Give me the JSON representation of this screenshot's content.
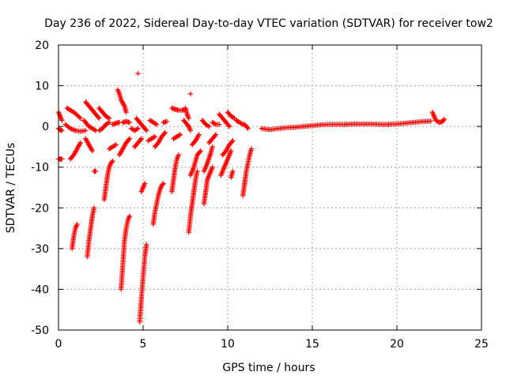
{
  "chart_data": {
    "type": "scatter",
    "title": "Day 236 of 2022, Sidereal Day-to-day VTEC variation (SDTVAR) for receiver tow2",
    "xlabel": "GPS time / hours",
    "ylabel": "SDTVAR / TECUs",
    "xlim": [
      0,
      25
    ],
    "ylim": [
      -50,
      20
    ],
    "xticks": [
      0,
      5,
      10,
      15,
      20,
      25
    ],
    "yticks": [
      -50,
      -40,
      -30,
      -20,
      -10,
      0,
      10,
      20
    ],
    "grid": true,
    "marker": "plus",
    "color": "#ff0000",
    "series": [
      {
        "name": "tracks",
        "segments": [
          [
            [
              0.0,
              3.5
            ],
            [
              0.1,
              2.5
            ],
            [
              0.2,
              1.5
            ]
          ],
          [
            [
              0.0,
              -0.5
            ],
            [
              0.1,
              -0.8
            ],
            [
              0.2,
              -1.0
            ]
          ],
          [
            [
              0.0,
              -8.0
            ],
            [
              0.1,
              -8.0
            ],
            [
              0.2,
              -8.0
            ]
          ],
          [
            [
              0.4,
              0.5
            ],
            [
              0.7,
              -0.5
            ],
            [
              1.0,
              -1.0
            ],
            [
              1.3,
              -1.2
            ],
            [
              1.6,
              -1.0
            ]
          ],
          [
            [
              0.5,
              4.5
            ],
            [
              0.7,
              4.0
            ],
            [
              0.9,
              3.5
            ],
            [
              1.1,
              2.8
            ],
            [
              1.3,
              2.0
            ]
          ],
          [
            [
              0.7,
              -8.0
            ],
            [
              0.9,
              -7.0
            ],
            [
              1.1,
              -5.5
            ],
            [
              1.3,
              -4.0
            ]
          ],
          [
            [
              0.8,
              -30.0
            ],
            [
              0.9,
              -27.0
            ],
            [
              1.0,
              -25.0
            ],
            [
              1.1,
              -24.0
            ]
          ],
          [
            [
              1.5,
              1.5
            ],
            [
              1.6,
              1.0
            ],
            [
              1.8,
              0.0
            ],
            [
              2.0,
              -0.5
            ],
            [
              2.2,
              -1.0
            ]
          ],
          [
            [
              1.6,
              -3.0
            ],
            [
              1.8,
              -4.5
            ],
            [
              2.0,
              -6.0
            ]
          ],
          [
            [
              1.6,
              6.0
            ],
            [
              1.8,
              5.0
            ],
            [
              2.0,
              4.0
            ],
            [
              2.2,
              3.0
            ],
            [
              2.4,
              2.0
            ]
          ],
          [
            [
              1.7,
              -32.0
            ],
            [
              1.8,
              -28.0
            ],
            [
              1.9,
              -25.0
            ],
            [
              2.0,
              -22.0
            ],
            [
              2.1,
              -20.0
            ]
          ],
          [
            [
              2.1,
              -11.0
            ],
            [
              2.2,
              -11.0
            ]
          ],
          [
            [
              2.4,
              -1.0
            ],
            [
              2.6,
              -0.5
            ],
            [
              2.8,
              0.5
            ],
            [
              3.0,
              1.0
            ]
          ],
          [
            [
              2.4,
              4.5
            ],
            [
              2.6,
              3.5
            ],
            [
              2.8,
              2.5
            ],
            [
              3.0,
              2.0
            ]
          ],
          [
            [
              2.7,
              -18.0
            ],
            [
              2.8,
              -15.0
            ],
            [
              2.9,
              -12.0
            ],
            [
              3.0,
              -10.0
            ],
            [
              3.1,
              -9.0
            ],
            [
              3.2,
              -8.5
            ]
          ],
          [
            [
              3.0,
              -5.5
            ],
            [
              3.2,
              -5.0
            ],
            [
              3.4,
              -4.5
            ]
          ],
          [
            [
              3.2,
              0.5
            ],
            [
              3.4,
              0.8
            ],
            [
              3.6,
              1.0
            ]
          ],
          [
            [
              3.5,
              9.0
            ],
            [
              3.6,
              8.0
            ],
            [
              3.7,
              6.5
            ],
            [
              3.9,
              5.0
            ],
            [
              4.0,
              3.5
            ]
          ],
          [
            [
              3.7,
              -40.0
            ],
            [
              3.8,
              -34.0
            ],
            [
              3.9,
              -28.0
            ],
            [
              4.0,
              -25.0
            ],
            [
              4.1,
              -23.0
            ],
            [
              4.2,
              -22.0
            ]
          ],
          [
            [
              3.6,
              -7.0
            ],
            [
              3.8,
              -5.5
            ],
            [
              4.0,
              -4.0
            ],
            [
              4.2,
              -3.0
            ]
          ],
          [
            [
              3.8,
              1.0
            ],
            [
              4.0,
              1.2
            ],
            [
              4.2,
              1.0
            ]
          ],
          [
            [
              4.3,
              -0.5
            ],
            [
              4.5,
              -1.0
            ],
            [
              4.7,
              -0.5
            ]
          ],
          [
            [
              4.5,
              -5.0
            ],
            [
              4.7,
              -4.0
            ],
            [
              4.9,
              -3.0
            ]
          ],
          [
            [
              4.6,
              2.0
            ],
            [
              4.8,
              1.0
            ],
            [
              5.0,
              0.0
            ],
            [
              5.2,
              -1.0
            ]
          ],
          [
            [
              4.7,
              13.0
            ]
          ],
          [
            [
              4.8,
              -48.0
            ],
            [
              4.9,
              -42.0
            ],
            [
              5.0,
              -37.0
            ],
            [
              5.1,
              -32.0
            ],
            [
              5.2,
              -29.0
            ]
          ],
          [
            [
              4.9,
              -16.0
            ],
            [
              5.0,
              -15.0
            ],
            [
              5.1,
              -14.0
            ]
          ],
          [
            [
              5.3,
              -3.5
            ],
            [
              5.5,
              -3.0
            ],
            [
              5.7,
              -2.5
            ]
          ],
          [
            [
              5.4,
              1.5
            ],
            [
              5.6,
              1.0
            ],
            [
              5.8,
              0.5
            ]
          ],
          [
            [
              5.6,
              -24.0
            ],
            [
              5.7,
              -21.0
            ],
            [
              5.8,
              -19.0
            ],
            [
              5.9,
              -17.0
            ],
            [
              6.0,
              -15.5
            ],
            [
              6.1,
              -14.5
            ],
            [
              6.2,
              -14.0
            ]
          ],
          [
            [
              5.7,
              -5.0
            ],
            [
              5.9,
              -4.0
            ],
            [
              6.1,
              -2.5
            ],
            [
              6.3,
              -1.5
            ]
          ],
          [
            [
              6.2,
              1.0
            ],
            [
              6.4,
              1.2
            ]
          ],
          [
            [
              6.7,
              -16.0
            ],
            [
              6.8,
              -13.0
            ],
            [
              6.9,
              -10.0
            ],
            [
              7.0,
              -8.0
            ],
            [
              7.1,
              -7.0
            ]
          ],
          [
            [
              6.7,
              4.5
            ],
            [
              6.9,
              4.2
            ],
            [
              7.1,
              4.0
            ],
            [
              7.3,
              4.0
            ],
            [
              7.5,
              4.2
            ]
          ],
          [
            [
              6.8,
              -3.0
            ],
            [
              7.0,
              -2.5
            ],
            [
              7.2,
              -2.0
            ]
          ],
          [
            [
              7.4,
              1.5
            ],
            [
              7.6,
              0.5
            ],
            [
              7.7,
              0.0
            ],
            [
              7.8,
              -1.0
            ]
          ],
          [
            [
              7.5,
              4.5
            ],
            [
              7.6,
              3.0
            ],
            [
              7.7,
              2.0
            ]
          ],
          [
            [
              7.8,
              8.0
            ]
          ],
          [
            [
              7.7,
              -26.0
            ],
            [
              7.8,
              -22.0
            ],
            [
              7.9,
              -19.0
            ],
            [
              8.0,
              -16.0
            ],
            [
              8.1,
              -13.0
            ],
            [
              8.2,
              -11.0
            ]
          ],
          [
            [
              7.8,
              -12.0
            ],
            [
              8.0,
              -10.0
            ],
            [
              8.2,
              -7.0
            ],
            [
              8.4,
              -6.0
            ]
          ],
          [
            [
              7.9,
              -4.5
            ],
            [
              8.1,
              -3.5
            ],
            [
              8.3,
              -2.0
            ]
          ],
          [
            [
              8.5,
              1.5
            ],
            [
              8.7,
              0.5
            ],
            [
              8.9,
              0.0
            ]
          ],
          [
            [
              8.6,
              -19.0
            ],
            [
              8.7,
              -16.0
            ],
            [
              8.8,
              -13.0
            ],
            [
              9.0,
              -11.0
            ],
            [
              9.1,
              -10.0
            ]
          ],
          [
            [
              8.6,
              -11.0
            ],
            [
              8.8,
              -9.0
            ],
            [
              9.0,
              -6.5
            ],
            [
              9.1,
              -5.0
            ]
          ],
          [
            [
              8.9,
              -4.0
            ],
            [
              9.1,
              -3.0
            ],
            [
              9.3,
              -2.0
            ]
          ],
          [
            [
              9.1,
              1.0
            ],
            [
              9.3,
              0.5
            ],
            [
              9.5,
              0.5
            ]
          ],
          [
            [
              9.5,
              3.0
            ],
            [
              9.7,
              2.0
            ],
            [
              9.9,
              1.0
            ],
            [
              10.1,
              0.0
            ]
          ],
          [
            [
              9.6,
              -12.0
            ],
            [
              9.8,
              -10.0
            ],
            [
              10.0,
              -8.0
            ],
            [
              10.2,
              -6.0
            ]
          ],
          [
            [
              9.7,
              -7.0
            ],
            [
              9.9,
              -6.0
            ],
            [
              10.1,
              -4.5
            ],
            [
              10.3,
              -3.5
            ]
          ],
          [
            [
              10.0,
              3.5
            ],
            [
              10.2,
              2.5
            ],
            [
              10.4,
              2.0
            ]
          ],
          [
            [
              10.5,
              1.5
            ],
            [
              10.7,
              1.0
            ],
            [
              10.9,
              0.5
            ]
          ],
          [
            [
              10.2,
              -12.5
            ],
            [
              10.3,
              -11.0
            ]
          ],
          [
            [
              10.9,
              -17.0
            ],
            [
              11.0,
              -14.0
            ],
            [
              11.1,
              -11.0
            ],
            [
              11.2,
              -9.0
            ],
            [
              11.3,
              -7.0
            ],
            [
              11.4,
              -5.5
            ]
          ],
          [
            [
              11.0,
              0.5
            ],
            [
              11.1,
              0.0
            ],
            [
              11.2,
              -0.5
            ]
          ],
          [
            [
              12.0,
              -0.5
            ],
            [
              12.5,
              -0.8
            ],
            [
              13.0,
              -0.5
            ],
            [
              13.5,
              -0.3
            ],
            [
              14.0,
              -0.2
            ],
            [
              14.5,
              0.0
            ]
          ],
          [
            [
              14.5,
              0.0
            ],
            [
              15.0,
              0.2
            ],
            [
              15.5,
              0.4
            ],
            [
              16.0,
              0.5
            ],
            [
              16.5,
              0.5
            ],
            [
              17.0,
              0.5
            ]
          ],
          [
            [
              17.0,
              0.5
            ],
            [
              17.5,
              0.6
            ],
            [
              18.0,
              0.6
            ],
            [
              18.5,
              0.6
            ],
            [
              19.0,
              0.5
            ],
            [
              19.5,
              0.5
            ]
          ],
          [
            [
              19.5,
              0.5
            ],
            [
              20.0,
              0.6
            ],
            [
              20.5,
              0.8
            ],
            [
              21.0,
              1.0
            ],
            [
              21.5,
              1.2
            ],
            [
              22.0,
              1.3
            ]
          ],
          [
            [
              22.1,
              3.5
            ],
            [
              22.3,
              1.5
            ],
            [
              22.5,
              1.0
            ],
            [
              22.7,
              1.2
            ],
            [
              22.8,
              1.8
            ]
          ]
        ]
      }
    ]
  }
}
